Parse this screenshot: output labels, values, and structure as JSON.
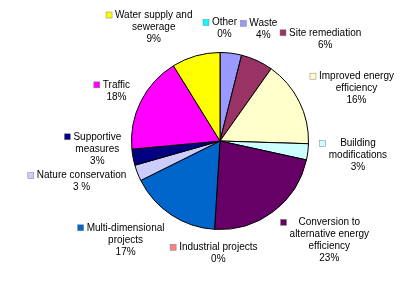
{
  "chart_data": {
    "type": "pie",
    "categories": [
      "Other",
      "Waste",
      "Site remediation",
      "Improved energy efficiency",
      "Building modifications",
      "Conversion to alternative energy efficiency",
      "Industrial projects",
      "Multi-dimensional projects",
      "Nature conservation",
      "Supportive measures",
      "Traffic",
      "Water supply and sewerage"
    ],
    "values": [
      0,
      4,
      6,
      16,
      3,
      23,
      0,
      17,
      3,
      3,
      18,
      9
    ],
    "value_labels": [
      "0%",
      "4%",
      "6%",
      "16%",
      "3%",
      "23%",
      "0%",
      "17%",
      "3 %",
      "3%",
      "18%",
      "9%"
    ],
    "colors": [
      "#00FFFF",
      "#9999FF",
      "#993366",
      "#FFFFCC",
      "#CCFFFF",
      "#660066",
      "#FF8080",
      "#0066CC",
      "#CCCCFF",
      "#000080",
      "#FF00FF",
      "#FFFF00"
    ],
    "data_labels": true
  }
}
